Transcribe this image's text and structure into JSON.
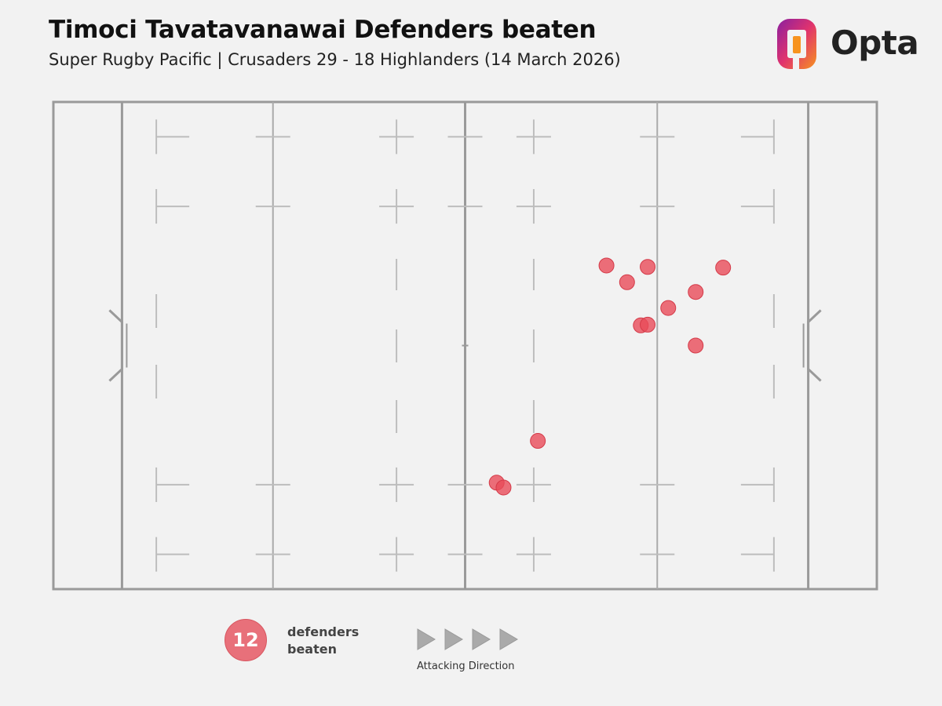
{
  "header": {
    "title": "Timoci Tavatavanawai Defenders beaten",
    "subtitle": "Super Rugby Pacific | Crusaders 29 - 18 Highlanders (14 March 2026)"
  },
  "logo": {
    "text": "Opta"
  },
  "colors": {
    "point_fill": "#e94b59",
    "legend_fill": "#e8707a",
    "pitch_line": "#9a9a9a",
    "pitch_marking": "#bdbdbd",
    "background": "#f2f2f2"
  },
  "legend": {
    "count": "12",
    "label_line1": "defenders",
    "label_line2": "beaten",
    "direction_label": "Attacking Direction",
    "direction": "right"
  },
  "chart_data": {
    "type": "scatter",
    "title": "Timoci Tavatavanawai Defenders beaten",
    "subtitle": "Super Rugby Pacific | Crusaders 29 - 18 Highlanders (14 March 2026)",
    "xlim": [
      0,
      120
    ],
    "ylim": [
      0,
      70
    ],
    "x_description": "pitch length (m), goal line at 10 and 110",
    "y_description": "pitch width (m)",
    "grid": false,
    "points": [
      {
        "x": 80.6,
        "y": 46.5
      },
      {
        "x": 86.6,
        "y": 46.3
      },
      {
        "x": 97.6,
        "y": 46.2
      },
      {
        "x": 83.6,
        "y": 44.1
      },
      {
        "x": 93.6,
        "y": 42.7
      },
      {
        "x": 89.6,
        "y": 40.4
      },
      {
        "x": 85.6,
        "y": 37.9
      },
      {
        "x": 86.6,
        "y": 38.0
      },
      {
        "x": 93.6,
        "y": 35.0
      },
      {
        "x": 70.6,
        "y": 21.3
      },
      {
        "x": 64.6,
        "y": 15.3
      },
      {
        "x": 65.6,
        "y": 14.6
      }
    ]
  }
}
